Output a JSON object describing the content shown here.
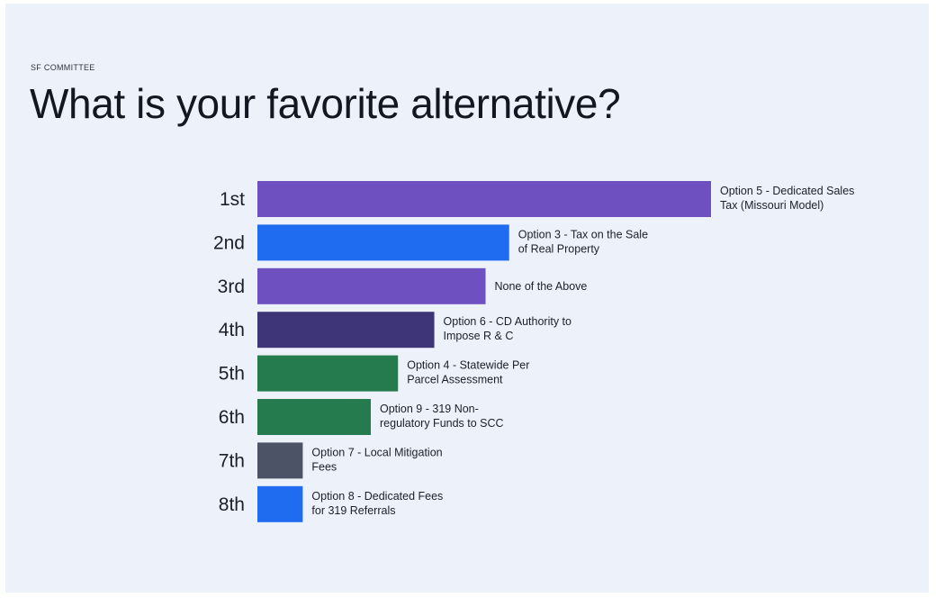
{
  "header": {
    "kicker": "SF COMMITTEE",
    "title": "What is your favorite alternative?"
  },
  "chart_data": {
    "type": "bar",
    "orientation": "horizontal",
    "title": "What is your favorite alternative?",
    "categories": [
      "1st",
      "2nd",
      "3rd",
      "4th",
      "5th",
      "6th",
      "7th",
      "8th"
    ],
    "bar_labels": [
      [
        "Option 5 - Dedicated Sales",
        "Tax (Missouri Model)"
      ],
      [
        "Option 3 - Tax on the Sale",
        "of Real Property"
      ],
      [
        "None of the Above"
      ],
      [
        "Option 6 - CD Authority to",
        "Impose R & C"
      ],
      [
        "Option 4 - Statewide Per",
        "Parcel Assessment"
      ],
      [
        "Option 9 - 319 Non-",
        "regulatory Funds to SCC"
      ],
      [
        "Option 7 - Local Mitigation",
        "Fees"
      ],
      [
        "Option 8 - Dedicated Fees",
        "for 319 Referrals"
      ]
    ],
    "values": [
      100,
      55.5,
      50.3,
      39,
      31,
      25,
      10,
      10
    ],
    "colors": [
      "#6f50c0",
      "#1f6cf0",
      "#6f50c0",
      "#3d3578",
      "#257a4e",
      "#257a4e",
      "#4d5366",
      "#1f6cf0"
    ],
    "xlim": [
      0,
      100
    ],
    "grid": false,
    "legend": "none"
  }
}
